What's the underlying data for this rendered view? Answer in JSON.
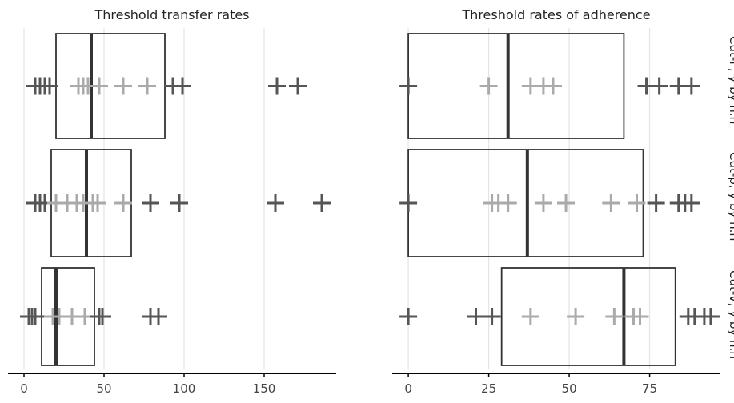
{
  "chart_data": [
    {
      "type": "box",
      "title": "Threshold transfer rates",
      "xlim": [
        -10,
        195
      ],
      "xticks": [
        0,
        50,
        100,
        150
      ],
      "tick_labels": [
        "0",
        "50",
        "100",
        "150"
      ],
      "grid": true,
      "rows": [
        {
          "facet_label": "Cut-F, y by h.rr",
          "box": {
            "q1": 20,
            "median": 42,
            "q3": 88
          },
          "points": [
            {
              "x": 7,
              "shade": "dark"
            },
            {
              "x": 10,
              "shade": "dark"
            },
            {
              "x": 13,
              "shade": "dark"
            },
            {
              "x": 16,
              "shade": "dark"
            },
            {
              "x": 34,
              "shade": "light"
            },
            {
              "x": 37,
              "shade": "light"
            },
            {
              "x": 40,
              "shade": "light"
            },
            {
              "x": 47,
              "shade": "light"
            },
            {
              "x": 62,
              "shade": "light"
            },
            {
              "x": 77,
              "shade": "light"
            },
            {
              "x": 93,
              "shade": "dark"
            },
            {
              "x": 99,
              "shade": "dark"
            },
            {
              "x": 158,
              "shade": "dark"
            },
            {
              "x": 171,
              "shade": "dark"
            }
          ]
        },
        {
          "facet_label": "Cut-p, y by h.rr",
          "box": {
            "q1": 17,
            "median": 39,
            "q3": 67
          },
          "points": [
            {
              "x": 7,
              "shade": "dark"
            },
            {
              "x": 10,
              "shade": "dark"
            },
            {
              "x": 13,
              "shade": "dark"
            },
            {
              "x": 20,
              "shade": "light"
            },
            {
              "x": 27,
              "shade": "light"
            },
            {
              "x": 33,
              "shade": "light"
            },
            {
              "x": 37,
              "shade": "light"
            },
            {
              "x": 43,
              "shade": "light"
            },
            {
              "x": 46,
              "shade": "light"
            },
            {
              "x": 62,
              "shade": "light"
            },
            {
              "x": 79,
              "shade": "dark"
            },
            {
              "x": 97,
              "shade": "dark"
            },
            {
              "x": 157,
              "shade": "dark"
            },
            {
              "x": 186,
              "shade": "dark"
            }
          ]
        },
        {
          "facet_label": "Cut-V, y by h.rr",
          "box": {
            "q1": 11,
            "median": 20,
            "q3": 44
          },
          "points": [
            {
              "x": 3,
              "shade": "dark"
            },
            {
              "x": 5,
              "shade": "dark"
            },
            {
              "x": 7,
              "shade": "dark"
            },
            {
              "x": 18,
              "shade": "light"
            },
            {
              "x": 22,
              "shade": "light"
            },
            {
              "x": 30,
              "shade": "light"
            },
            {
              "x": 38,
              "shade": "light"
            },
            {
              "x": 47,
              "shade": "dark"
            },
            {
              "x": 49,
              "shade": "dark"
            },
            {
              "x": 79,
              "shade": "dark"
            },
            {
              "x": 84,
              "shade": "dark"
            }
          ]
        }
      ]
    },
    {
      "type": "box",
      "title": "Threshold rates of adherence",
      "xlim": [
        -5,
        97
      ],
      "xticks": [
        0,
        25,
        50,
        75
      ],
      "tick_labels": [
        "0",
        "25",
        "50",
        "75"
      ],
      "grid": true,
      "rows": [
        {
          "box": {
            "q1": 0,
            "median": 31,
            "q3": 67
          },
          "points": [
            {
              "x": 0,
              "shade": "dark"
            },
            {
              "x": 25,
              "shade": "light"
            },
            {
              "x": 38,
              "shade": "light"
            },
            {
              "x": 42,
              "shade": "light"
            },
            {
              "x": 45,
              "shade": "light"
            },
            {
              "x": 74,
              "shade": "dark"
            },
            {
              "x": 78,
              "shade": "dark"
            },
            {
              "x": 84,
              "shade": "dark"
            },
            {
              "x": 88,
              "shade": "dark"
            }
          ]
        },
        {
          "box": {
            "q1": 0,
            "median": 37,
            "q3": 73
          },
          "points": [
            {
              "x": 0,
              "shade": "dark"
            },
            {
              "x": 26,
              "shade": "light"
            },
            {
              "x": 28,
              "shade": "light"
            },
            {
              "x": 31,
              "shade": "light"
            },
            {
              "x": 42,
              "shade": "light"
            },
            {
              "x": 49,
              "shade": "light"
            },
            {
              "x": 63,
              "shade": "light"
            },
            {
              "x": 71,
              "shade": "light"
            },
            {
              "x": 77,
              "shade": "dark"
            },
            {
              "x": 84,
              "shade": "dark"
            },
            {
              "x": 86,
              "shade": "dark"
            },
            {
              "x": 88,
              "shade": "dark"
            }
          ]
        },
        {
          "box": {
            "q1": 29,
            "median": 67,
            "q3": 83
          },
          "points": [
            {
              "x": 0,
              "shade": "dark"
            },
            {
              "x": 21,
              "shade": "dark"
            },
            {
              "x": 26,
              "shade": "dark"
            },
            {
              "x": 38,
              "shade": "light"
            },
            {
              "x": 52,
              "shade": "light"
            },
            {
              "x": 64,
              "shade": "light"
            },
            {
              "x": 70,
              "shade": "light"
            },
            {
              "x": 72,
              "shade": "light"
            },
            {
              "x": 87,
              "shade": "dark"
            },
            {
              "x": 89,
              "shade": "dark"
            },
            {
              "x": 92,
              "shade": "dark"
            },
            {
              "x": 94,
              "shade": "dark"
            }
          ]
        }
      ]
    }
  ],
  "colors": {
    "box": "#333333",
    "median": "#333333",
    "axis": "#000000",
    "grid": "#e5e5e5",
    "point_dark": "#555555",
    "point_light": "#aaaaaa",
    "text": "#222222"
  }
}
